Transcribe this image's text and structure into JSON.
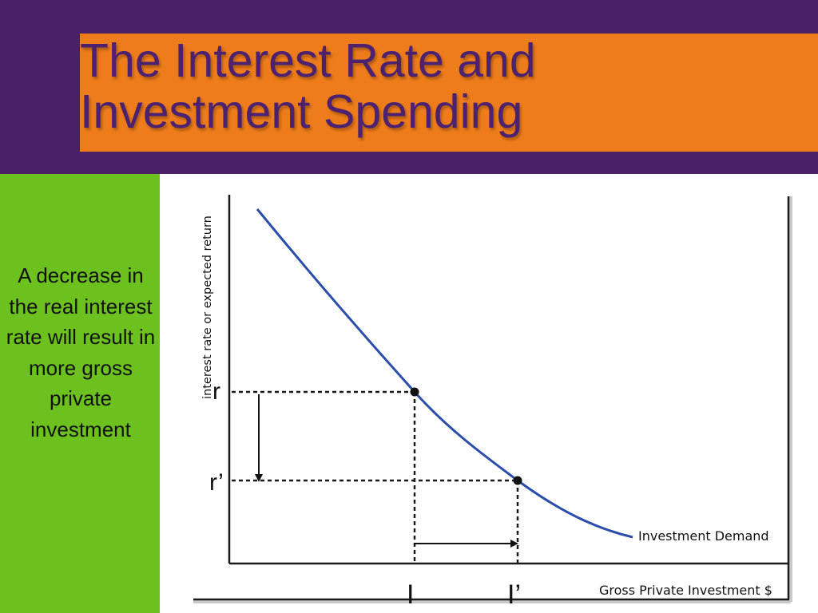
{
  "slide": {
    "title_line1": "The Interest Rate and",
    "title_line2": "Investment Spending",
    "side_text": "A decrease in the real interest rate will result in more gross private investment"
  },
  "colors": {
    "header_background": "#4a2166",
    "title_band": "#ee7c1a",
    "title_text": "#4c2170",
    "sidebar": "#6cc11e",
    "curve": "#2c4eab"
  },
  "diagram": {
    "y_axis_label": "interest rate or expected return",
    "x_axis_label": "Gross Private Investment $",
    "curve_label": "Investment Demand",
    "rate_high_label": "r",
    "rate_low_label": "r’",
    "investment_low_label": "I",
    "investment_high_label": "I’",
    "points": [
      {
        "rate": "r",
        "investment": "I"
      },
      {
        "rate": "r’",
        "investment": "I’"
      }
    ]
  }
}
